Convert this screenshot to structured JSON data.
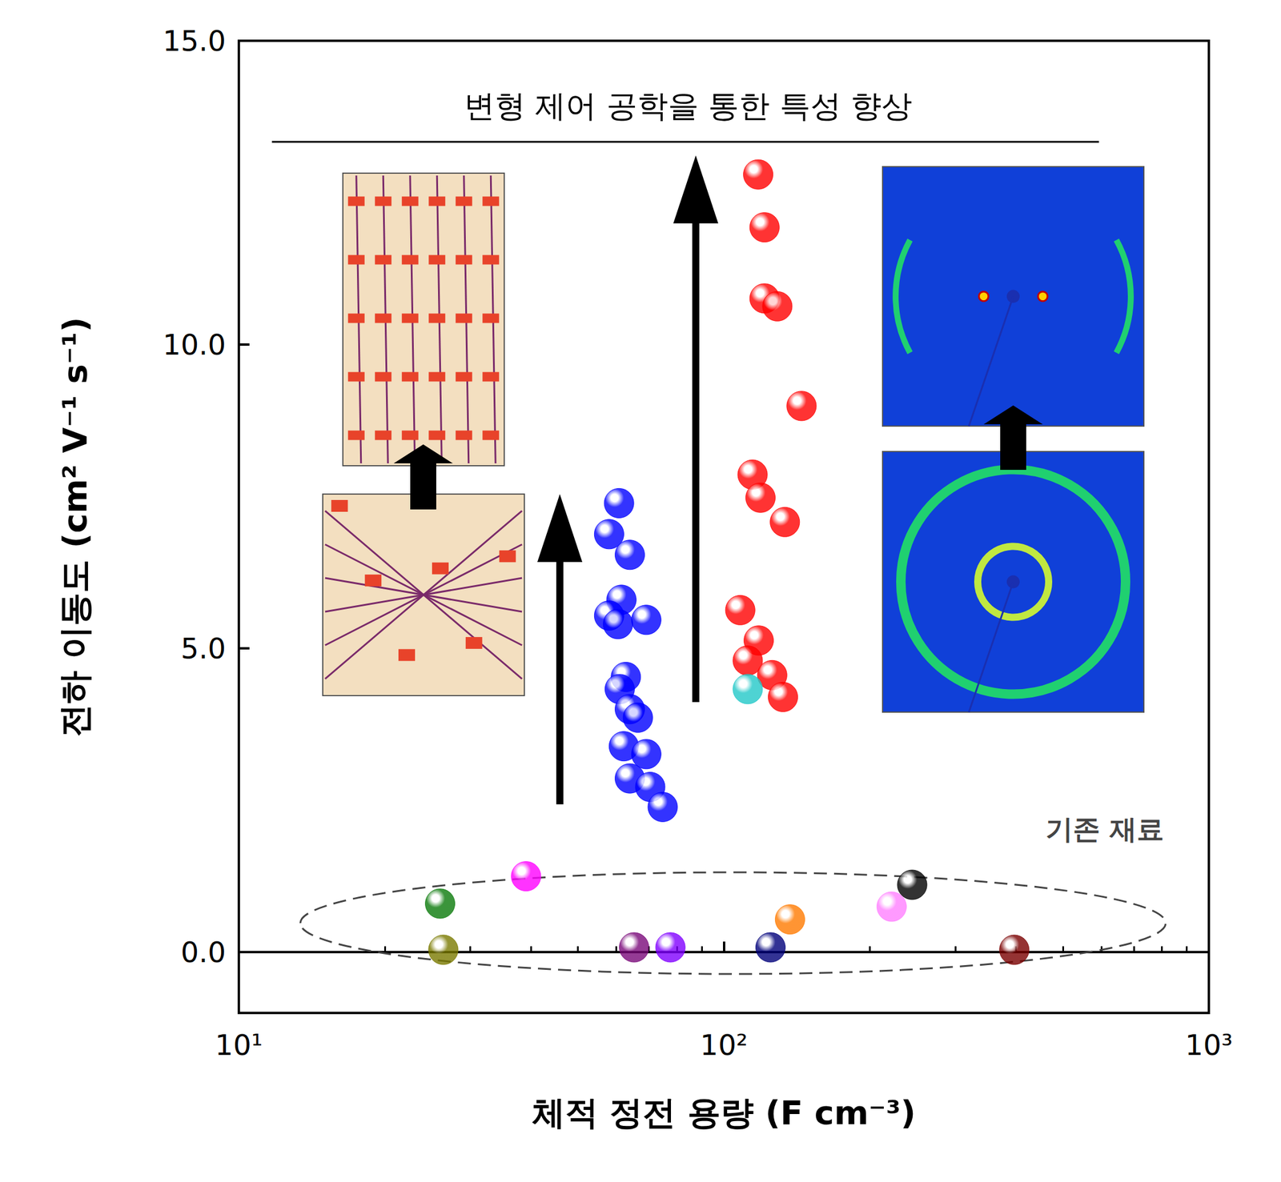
{
  "chart_data": {
    "type": "scatter",
    "title": "변형 제어 공학을 통한 특성 향상",
    "x_label": "체적 정전 용량 (F cm⁻³)",
    "y_label": "전하 이동도 (cm² V⁻¹ s⁻¹)",
    "annotations": [
      "기존 재료"
    ],
    "log": "x",
    "xlim": [
      10,
      1000
    ],
    "xticks": [
      {
        "value": 10,
        "label": "10¹"
      },
      {
        "value": 100,
        "label": "10²"
      },
      {
        "value": 1000,
        "label": "10³"
      }
    ],
    "ylim": [
      -1,
      15
    ],
    "yticks": [
      {
        "value": 0,
        "label": "0.0"
      },
      {
        "value": 5,
        "label": "5.0"
      },
      {
        "value": 10,
        "label": "10.0"
      },
      {
        "value": 15,
        "label": "15.0"
      }
    ],
    "grid": false,
    "marker": "circle",
    "series": [
      {
        "color": "#0000ff",
        "x": [
          60.8,
          58.0,
          64.0,
          61.5,
          58.0,
          69.2,
          60.5,
          62.8,
          61.0,
          64.0,
          66.5,
          62.2,
          69.2,
          64.0,
          70.5,
          74.8
        ],
        "values": [
          7.39,
          6.88,
          6.54,
          5.8,
          5.54,
          5.47,
          5.4,
          4.53,
          4.33,
          4.0,
          3.86,
          3.39,
          3.26,
          2.86,
          2.72,
          2.39
        ]
      },
      {
        "color": "#ff0000",
        "x": [
          117.7,
          121.3,
          121.3,
          128.9,
          144.6,
          114.6,
          119.0,
          133.6,
          108.1,
          118.0,
          112.0,
          125.8,
          132.4
        ],
        "values": [
          12.8,
          11.93,
          10.76,
          10.63,
          8.99,
          7.86,
          7.48,
          7.08,
          5.63,
          5.13,
          4.8,
          4.56,
          4.2
        ]
      },
      {
        "color": "#22c8c8",
        "x": [
          112.0
        ],
        "values": [
          4.33
        ]
      },
      {
        "color": "#0a7a0a",
        "x": [
          26.0
        ],
        "values": [
          0.8
        ]
      },
      {
        "color": "#7a7a00",
        "x": [
          26.4
        ],
        "values": [
          0.04
        ]
      },
      {
        "color": "#ff00ff",
        "x": [
          39.1
        ],
        "values": [
          1.25
        ]
      },
      {
        "color": "#7a0a7a",
        "x": [
          65.3
        ],
        "values": [
          0.08
        ]
      },
      {
        "color": "#8000ff",
        "x": [
          77.6
        ],
        "values": [
          0.08
        ]
      },
      {
        "color": "#00007a",
        "x": [
          124.8
        ],
        "values": [
          0.08
        ]
      },
      {
        "color": "#ff7a00",
        "x": [
          136.9
        ],
        "values": [
          0.54
        ]
      },
      {
        "color": "#ff80ff",
        "x": [
          221.8
        ],
        "values": [
          0.75
        ]
      },
      {
        "color": "#000000",
        "x": [
          244.5
        ],
        "values": [
          1.11
        ]
      },
      {
        "color": "#7a0000",
        "x": [
          397.0
        ],
        "values": [
          0.04
        ]
      }
    ]
  }
}
